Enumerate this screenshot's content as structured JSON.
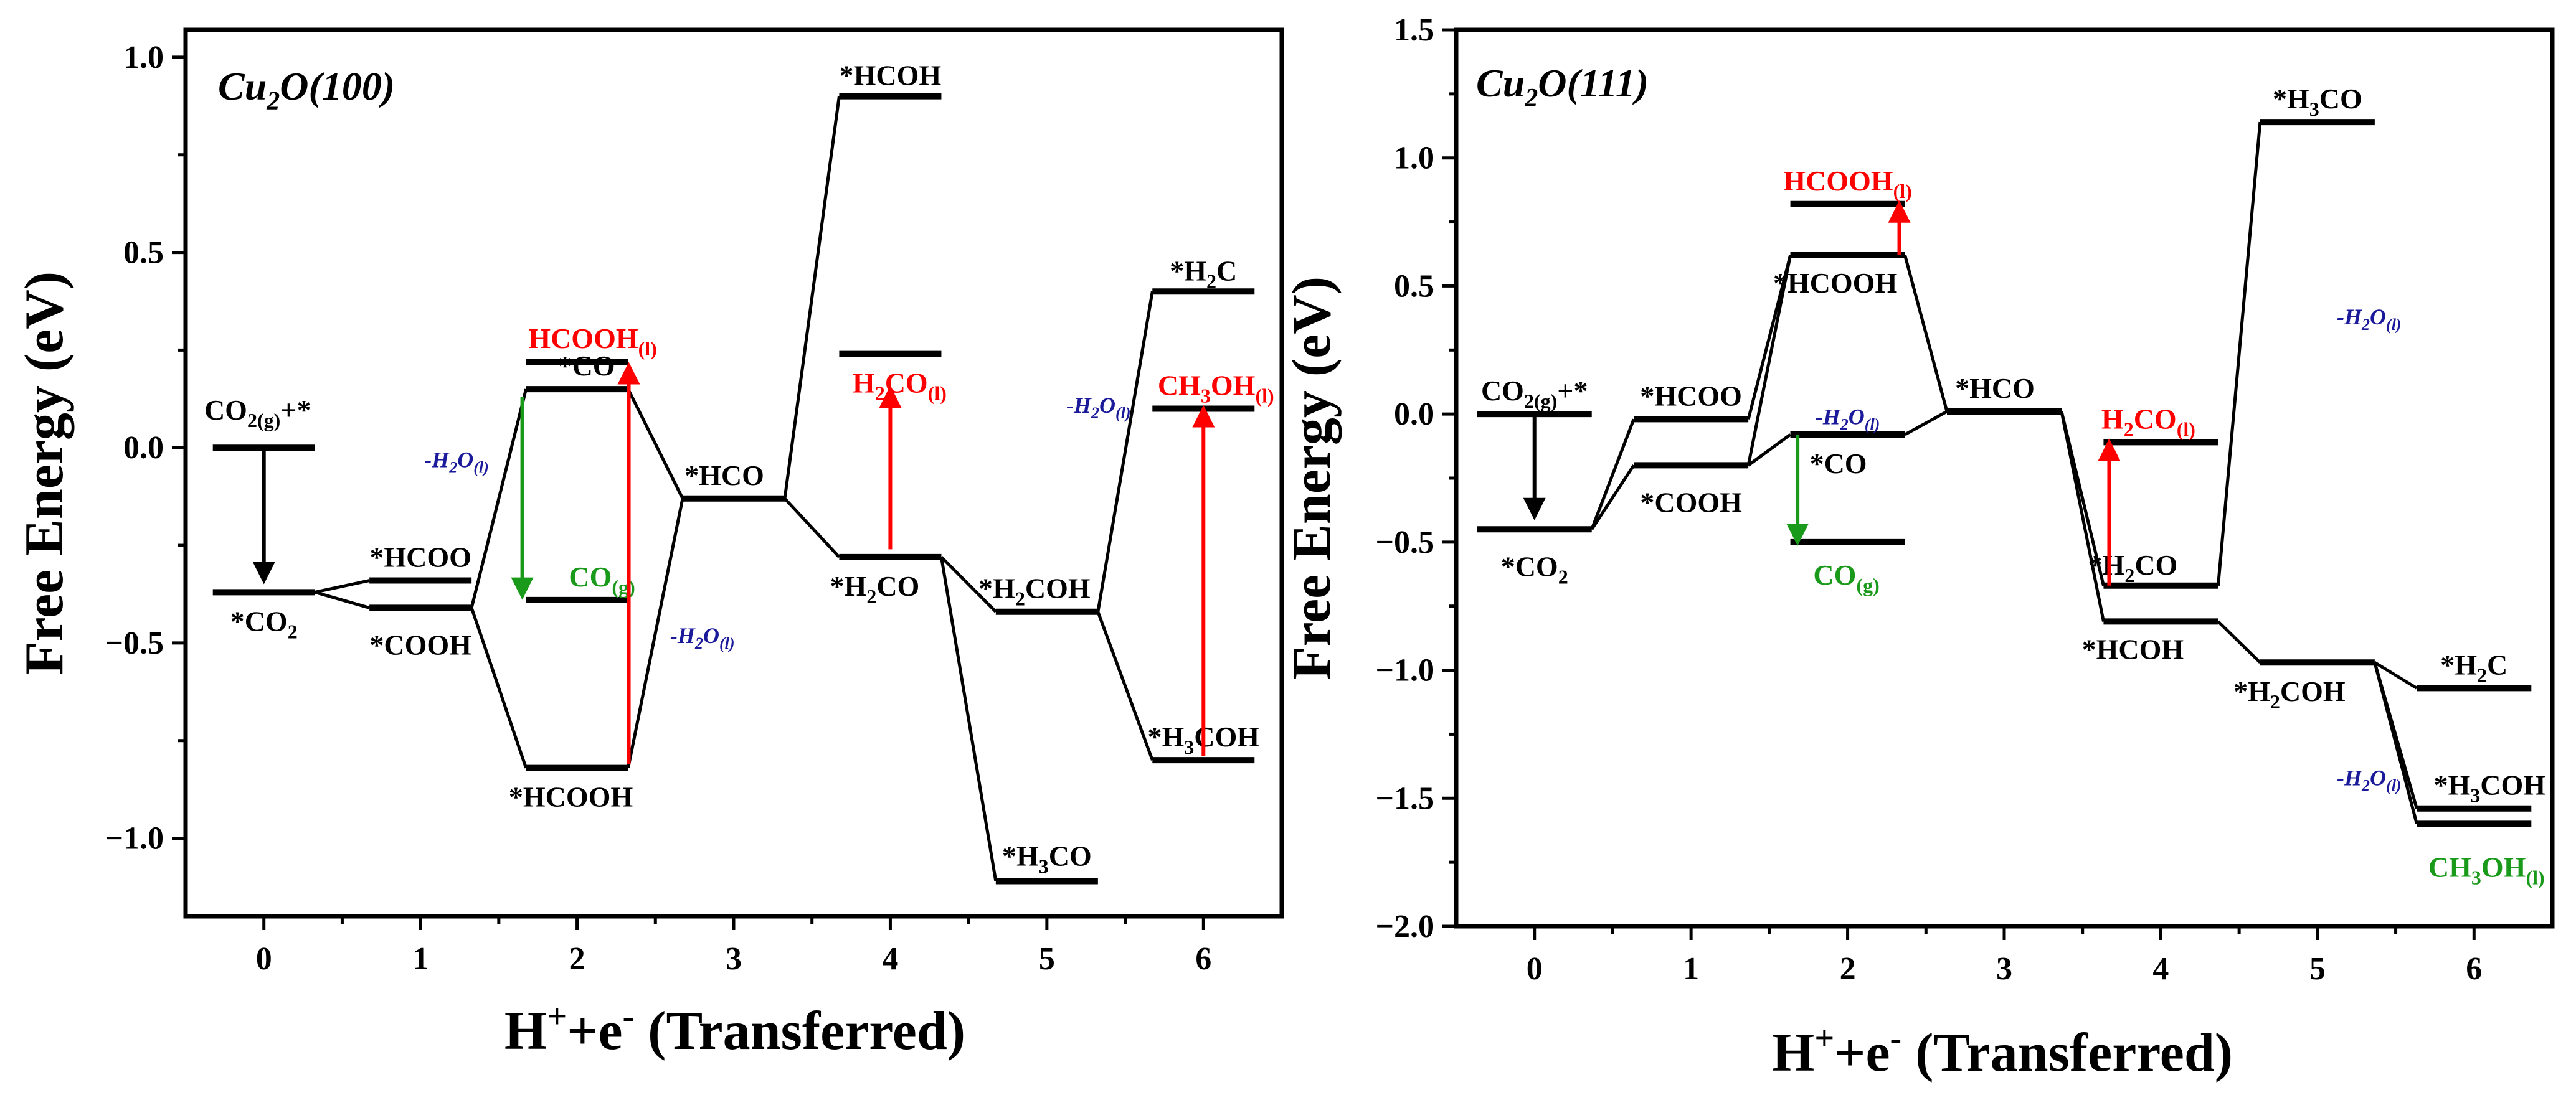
{
  "colors": {
    "black": "#000000",
    "red": "#ff0000",
    "green": "#1a9a1a",
    "blue": "#1a1a9a"
  },
  "chart_data": [
    {
      "type": "line",
      "title": "Cu2O(100)",
      "title_parts": {
        "base": "Cu",
        "sub": "2",
        "rest": "O(100)"
      },
      "xlabel": "H+e- (Transferred)",
      "xlabel_parts": {
        "h": "H",
        "plus": "+",
        "mid": "+e",
        "minus": "-",
        "rest": " (Transferred)"
      },
      "ylabel": "Free Energy (eV)",
      "xlim": [
        -0.5,
        6.5
      ],
      "ylim": [
        -1.2,
        1.07
      ],
      "xticks": [
        0,
        1,
        2,
        3,
        4,
        5,
        6
      ],
      "xtick_labels": [
        "0",
        "1",
        "2",
        "3",
        "4",
        "5",
        "6"
      ],
      "yticks": [
        1.0,
        0.5,
        0.0,
        -0.5,
        -1.0
      ],
      "ytick_labels": [
        "1.0",
        "0.5",
        "0.0",
        "−0.5",
        "−1.0"
      ],
      "levels": [
        {
          "id": "co2g",
          "x": 0,
          "y": 0.0,
          "label": "CO2(g)+*",
          "parts": [
            {
              "t": "CO"
            },
            {
              "t": "2(g)",
              "sub": true
            },
            {
              "t": "+*"
            }
          ],
          "color": "#000000"
        },
        {
          "id": "co2",
          "x": 0,
          "y": -0.37,
          "label": "*CO2",
          "parts": [
            {
              "t": "*CO"
            },
            {
              "t": "2",
              "sub": true
            }
          ],
          "color": "#000000"
        },
        {
          "id": "hcoo",
          "x": 1,
          "y": -0.34,
          "label": "*HCOO",
          "parts": [
            {
              "t": "*HCOO"
            }
          ],
          "color": "#000000"
        },
        {
          "id": "cooh",
          "x": 1,
          "y": -0.41,
          "label": "*COOH",
          "parts": [
            {
              "t": "*COOH"
            }
          ],
          "color": "#000000"
        },
        {
          "id": "hcooh_l",
          "x": 2,
          "y": 0.22,
          "label": "HCOOH(l)",
          "parts": [
            {
              "t": "HCOOH"
            },
            {
              "t": "(l)",
              "sub": true
            }
          ],
          "color": "#ff0000"
        },
        {
          "id": "co",
          "x": 2,
          "y": 0.15,
          "label": "*CO",
          "parts": [
            {
              "t": "*CO"
            }
          ],
          "color": "#000000"
        },
        {
          "id": "co_g",
          "x": 2,
          "y": -0.39,
          "label": "CO(g)",
          "parts": [
            {
              "t": "CO"
            },
            {
              "t": "(g)",
              "sub": true
            }
          ],
          "color": "#1a9a1a"
        },
        {
          "id": "hcooh",
          "x": 2,
          "y": -0.82,
          "label": "*HCOOH",
          "parts": [
            {
              "t": "*HCOOH"
            }
          ],
          "color": "#000000"
        },
        {
          "id": "hco",
          "x": 3,
          "y": -0.13,
          "label": "*HCO",
          "parts": [
            {
              "t": "*HCO"
            }
          ],
          "color": "#000000"
        },
        {
          "id": "hcoh",
          "x": 4,
          "y": 0.9,
          "label": "*HCOH",
          "parts": [
            {
              "t": "*HCOH"
            }
          ],
          "color": "#000000"
        },
        {
          "id": "h2co_l",
          "x": 4,
          "y": 0.24,
          "label": "H2CO(l)",
          "parts": [
            {
              "t": "H"
            },
            {
              "t": "2",
              "sub": true
            },
            {
              "t": "CO"
            },
            {
              "t": "(l)",
              "sub": true
            }
          ],
          "color": "#ff0000"
        },
        {
          "id": "h2co",
          "x": 4,
          "y": -0.28,
          "label": "*H2CO",
          "parts": [
            {
              "t": "*H"
            },
            {
              "t": "2",
              "sub": true
            },
            {
              "t": "CO"
            }
          ],
          "color": "#000000"
        },
        {
          "id": "h2coh",
          "x": 5,
          "y": -0.42,
          "label": "*H2COH",
          "parts": [
            {
              "t": "*H"
            },
            {
              "t": "2",
              "sub": true
            },
            {
              "t": "COH"
            }
          ],
          "color": "#000000"
        },
        {
          "id": "h3co",
          "x": 5,
          "y": -1.11,
          "label": "*H3CO",
          "parts": [
            {
              "t": "*H"
            },
            {
              "t": "3",
              "sub": true
            },
            {
              "t": "CO"
            }
          ],
          "color": "#000000"
        },
        {
          "id": "h2c",
          "x": 6,
          "y": 0.4,
          "label": "*H2C",
          "parts": [
            {
              "t": "*H"
            },
            {
              "t": "2",
              "sub": true
            },
            {
              "t": "C"
            }
          ],
          "color": "#000000"
        },
        {
          "id": "ch3oh_l",
          "x": 6,
          "y": 0.1,
          "label": "CH3OH(l)",
          "parts": [
            {
              "t": "CH"
            },
            {
              "t": "3",
              "sub": true
            },
            {
              "t": "OH"
            },
            {
              "t": "(l)",
              "sub": true
            }
          ],
          "color": "#ff0000"
        },
        {
          "id": "h3coh",
          "x": 6,
          "y": -0.8,
          "label": "*H3COH",
          "parts": [
            {
              "t": "*H"
            },
            {
              "t": "3",
              "sub": true
            },
            {
              "t": "COH"
            }
          ],
          "color": "#000000"
        }
      ],
      "connections": [
        [
          "co2",
          "hcoo"
        ],
        [
          "co2",
          "cooh"
        ],
        [
          "cooh",
          "co"
        ],
        [
          "cooh",
          "hcooh"
        ],
        [
          "co",
          "hco"
        ],
        [
          "hcooh",
          "hco"
        ],
        [
          "hco",
          "hcoh"
        ],
        [
          "hco",
          "h2co"
        ],
        [
          "h2co",
          "h2coh"
        ],
        [
          "h2co",
          "h3co"
        ],
        [
          "h2coh",
          "h2c"
        ],
        [
          "h2coh",
          "h3coh"
        ]
      ],
      "arrows": [
        {
          "x": 0,
          "from": 0.0,
          "to": -0.34,
          "color": "#000000"
        },
        {
          "x": 1.65,
          "from": 0.13,
          "to": -0.38,
          "color": "#1a9a1a"
        },
        {
          "x": 2.33,
          "from": -0.81,
          "to": 0.21,
          "color": "#ff0000"
        },
        {
          "x": 4.0,
          "from": -0.26,
          "to": 0.15,
          "color": "#ff0000"
        },
        {
          "x": 6.0,
          "from": -0.79,
          "to": 0.1,
          "color": "#ff0000"
        }
      ],
      "water_labels": [
        {
          "x": 1.23,
          "y": -0.05,
          "text": "-H2O(l)"
        },
        {
          "x": 2.8,
          "y": -0.5,
          "text": "-H2O(l)"
        },
        {
          "x": 5.33,
          "y": 0.09,
          "text": "-H2O(l)"
        }
      ]
    },
    {
      "type": "line",
      "title": "Cu2O(111)",
      "title_parts": {
        "base": "Cu",
        "sub": "2",
        "rest": "O(111)"
      },
      "xlabel": "H+e- (Transferred)",
      "xlabel_parts": {
        "h": "H",
        "plus": "+",
        "mid": "+e",
        "minus": "-",
        "rest": " (Transferred)"
      },
      "ylabel": "Free Energy (eV)",
      "xlim": [
        -0.5,
        6.5
      ],
      "ylim": [
        -2.0,
        1.5
      ],
      "xticks": [
        0,
        1,
        2,
        3,
        4,
        5,
        6
      ],
      "xtick_labels": [
        "0",
        "1",
        "2",
        "3",
        "4",
        "5",
        "6"
      ],
      "yticks": [
        1.5,
        1.0,
        0.5,
        0.0,
        -0.5,
        -1.0,
        -1.5,
        -2.0
      ],
      "ytick_labels": [
        "1.5",
        "1.0",
        "0.5",
        "0.0",
        "−0.5",
        "−1.0",
        "−1.5",
        "−2.0"
      ],
      "levels": [
        {
          "id": "co2g",
          "x": 0,
          "y": 0.0,
          "label": "CO2(g)+*",
          "parts": [
            {
              "t": "CO"
            },
            {
              "t": "2(g)",
              "sub": true
            },
            {
              "t": "+*"
            }
          ],
          "color": "#000000"
        },
        {
          "id": "co2",
          "x": 0,
          "y": -0.45,
          "label": "*CO2",
          "parts": [
            {
              "t": "*CO"
            },
            {
              "t": "2",
              "sub": true
            }
          ],
          "color": "#000000"
        },
        {
          "id": "hcoo",
          "x": 1,
          "y": -0.02,
          "label": "*HCOO",
          "parts": [
            {
              "t": "*HCOO"
            }
          ],
          "color": "#000000"
        },
        {
          "id": "cooh",
          "x": 1,
          "y": -0.2,
          "label": "*COOH",
          "parts": [
            {
              "t": "*COOH"
            }
          ],
          "color": "#000000"
        },
        {
          "id": "hcooh_l",
          "x": 2,
          "y": 0.82,
          "label": "HCOOH(l)",
          "parts": [
            {
              "t": "HCOOH"
            },
            {
              "t": "(l)",
              "sub": true
            }
          ],
          "color": "#ff0000"
        },
        {
          "id": "hcooh",
          "x": 2,
          "y": 0.62,
          "label": "*HCOOH",
          "parts": [
            {
              "t": "*HCOOH"
            }
          ],
          "color": "#000000"
        },
        {
          "id": "co",
          "x": 2,
          "y": -0.08,
          "label": "*CO",
          "parts": [
            {
              "t": "*CO"
            }
          ],
          "color": "#000000"
        },
        {
          "id": "co_g",
          "x": 2,
          "y": -0.5,
          "label": "CO(g)",
          "parts": [
            {
              "t": "CO"
            },
            {
              "t": "(g)",
              "sub": true
            }
          ],
          "color": "#1a9a1a"
        },
        {
          "id": "hco",
          "x": 3,
          "y": 0.01,
          "label": "*HCO",
          "parts": [
            {
              "t": "*HCO"
            }
          ],
          "color": "#000000"
        },
        {
          "id": "h2co_l",
          "x": 4,
          "y": -0.11,
          "label": "H2CO(l)",
          "parts": [
            {
              "t": "H"
            },
            {
              "t": "2",
              "sub": true
            },
            {
              "t": "CO"
            },
            {
              "t": "(l)",
              "sub": true
            }
          ],
          "color": "#ff0000"
        },
        {
          "id": "h2co",
          "x": 4,
          "y": -0.67,
          "label": "*H2CO",
          "parts": [
            {
              "t": "*H"
            },
            {
              "t": "2",
              "sub": true
            },
            {
              "t": "CO"
            }
          ],
          "color": "#000000"
        },
        {
          "id": "hcoh",
          "x": 4,
          "y": -0.81,
          "label": "*HCOH",
          "parts": [
            {
              "t": "*HCOH"
            }
          ],
          "color": "#000000"
        },
        {
          "id": "h3co",
          "x": 5,
          "y": 1.14,
          "label": "*H3CO",
          "parts": [
            {
              "t": "*H"
            },
            {
              "t": "3",
              "sub": true
            },
            {
              "t": "CO"
            }
          ],
          "color": "#000000"
        },
        {
          "id": "h2coh",
          "x": 5,
          "y": -0.97,
          "label": "*H2COH",
          "parts": [
            {
              "t": "*H"
            },
            {
              "t": "2",
              "sub": true
            },
            {
              "t": "COH"
            }
          ],
          "color": "#000000"
        },
        {
          "id": "h2c",
          "x": 6,
          "y": -1.07,
          "label": "*H2C",
          "parts": [
            {
              "t": "*H"
            },
            {
              "t": "2",
              "sub": true
            },
            {
              "t": "C"
            }
          ],
          "color": "#000000"
        },
        {
          "id": "h3coh",
          "x": 6,
          "y": -1.54,
          "label": "*H3COH",
          "parts": [
            {
              "t": "*H"
            },
            {
              "t": "3",
              "sub": true
            },
            {
              "t": "COH"
            }
          ],
          "color": "#000000"
        },
        {
          "id": "ch3oh_l",
          "x": 6,
          "y": -1.6,
          "label": "CH3OH(l)",
          "parts": [
            {
              "t": "CH"
            },
            {
              "t": "3",
              "sub": true
            },
            {
              "t": "OH"
            },
            {
              "t": "(l)",
              "sub": true
            }
          ],
          "color": "#1a9a1a"
        }
      ],
      "connections": [
        [
          "co2",
          "hcoo"
        ],
        [
          "co2",
          "cooh"
        ],
        [
          "hcoo",
          "hcooh"
        ],
        [
          "cooh",
          "hcooh"
        ],
        [
          "cooh",
          "co"
        ],
        [
          "hcooh",
          "hco"
        ],
        [
          "co",
          "hco"
        ],
        [
          "hco",
          "h2co"
        ],
        [
          "hco",
          "hcoh"
        ],
        [
          "h2co",
          "h3co"
        ],
        [
          "hcoh",
          "h2coh"
        ],
        [
          "h2coh",
          "h2c"
        ],
        [
          "h2coh",
          "h3coh"
        ],
        [
          "h2coh",
          "ch3oh_l"
        ]
      ],
      "arrows": [
        {
          "x": 0,
          "from": 0.0,
          "to": -0.4,
          "color": "#000000"
        },
        {
          "x": 1.68,
          "from": -0.08,
          "to": -0.5,
          "color": "#1a9a1a"
        },
        {
          "x": 2.33,
          "from": 0.62,
          "to": 0.82,
          "color": "#ff0000"
        },
        {
          "x": 3.67,
          "from": -0.67,
          "to": -0.11,
          "color": "#ff0000"
        }
      ],
      "water_labels": [
        {
          "x": 2.0,
          "y": -0.04,
          "text": "-H2O(l)"
        },
        {
          "x": 5.33,
          "y": 0.35,
          "text": "-H2O(l)"
        },
        {
          "x": 5.33,
          "y": -1.45,
          "text": "-H2O(l)"
        }
      ]
    }
  ]
}
